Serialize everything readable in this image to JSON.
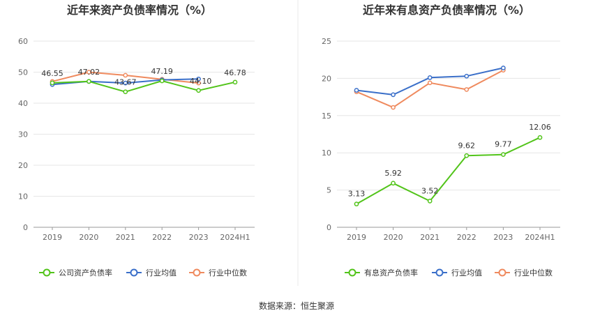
{
  "colors": {
    "company": "#52c41a",
    "industry_avg": "#3a6fc9",
    "industry_median": "#ef8a5e",
    "grid": "#e6e6e6",
    "axis": "#999999",
    "divider": "#e8e8e8"
  },
  "legend": {
    "left": [
      "公司资产负债率",
      "行业均值",
      "行业中位数"
    ],
    "right": [
      "有息资产负债率",
      "行业均值",
      "行业中位数"
    ]
  },
  "footer": {
    "source": "数据来源：恒生聚源"
  },
  "chart_data": [
    {
      "type": "line",
      "title": "近年来资产负债率情况（%）",
      "categories": [
        "2019",
        "2020",
        "2021",
        "2022",
        "2023",
        "2024H1"
      ],
      "ylim": [
        0,
        60
      ],
      "yticks": [
        0,
        10,
        20,
        30,
        40,
        50,
        60
      ],
      "grid": true,
      "legend_position": "bottom",
      "series": [
        {
          "name": "公司资产负债率",
          "values": [
            46.55,
            47.02,
            43.67,
            47.19,
            44.1,
            46.78
          ],
          "labels": [
            "46.55",
            "47.02",
            "43.67",
            "47.19",
            "44.10",
            "46.78"
          ]
        },
        {
          "name": "行业均值",
          "values": [
            46.0,
            47.0,
            46.5,
            47.5,
            47.8,
            null
          ]
        },
        {
          "name": "行业中位数",
          "values": [
            47.0,
            50.0,
            49.0,
            47.7,
            46.5,
            null
          ]
        }
      ]
    },
    {
      "type": "line",
      "title": "近年来有息资产负债率情况（%）",
      "categories": [
        "2019",
        "2020",
        "2021",
        "2022",
        "2023",
        "2024H1"
      ],
      "ylim": [
        0,
        25
      ],
      "yticks": [
        0,
        5,
        10,
        15,
        20,
        25
      ],
      "grid": true,
      "legend_position": "bottom",
      "series": [
        {
          "name": "有息资产负债率",
          "values": [
            3.13,
            5.92,
            3.52,
            9.62,
            9.77,
            12.06
          ],
          "labels": [
            "3.13",
            "5.92",
            "3.52",
            "9.62",
            "9.77",
            "12.06"
          ]
        },
        {
          "name": "行业均值",
          "values": [
            18.4,
            17.8,
            20.1,
            20.3,
            21.4,
            null
          ]
        },
        {
          "name": "行业中位数",
          "values": [
            18.2,
            16.1,
            19.4,
            18.5,
            21.1,
            null
          ]
        }
      ]
    }
  ]
}
